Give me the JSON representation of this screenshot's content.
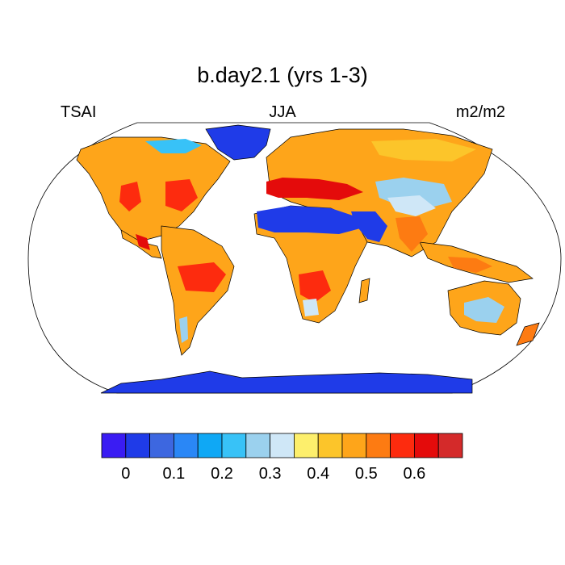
{
  "title": "b.day2.1 (yrs 1-3)",
  "subtitle": {
    "left": "TSAI",
    "center": "JJA",
    "right": "m2/m2"
  },
  "legend": {
    "colors": [
      "#3a1cf3",
      "#1f3be8",
      "#3d67e0",
      "#2a87f6",
      "#0fa8f5",
      "#38c2f7",
      "#9bd1ee",
      "#cfe7f7",
      "#fdef6c",
      "#fcc52a",
      "#fea51a",
      "#fd7b12",
      "#fd2b0e",
      "#e40b0b",
      "#d42a2a"
    ],
    "labels": [
      "0",
      "0.1",
      "0.2",
      "0.3",
      "0.4",
      "0.5",
      "0.6"
    ]
  },
  "chart_data": {
    "type": "heatmap",
    "title": "b.day2.1 (yrs 1-3)",
    "variable": "TSAI",
    "season": "JJA",
    "units": "m2/m2",
    "projection": "Robinson, global",
    "legend_placement": "bottom",
    "levels": [
      0,
      0.05,
      0.1,
      0.15,
      0.2,
      0.25,
      0.3,
      0.35,
      0.4,
      0.45,
      0.5,
      0.55,
      0.6,
      0.65
    ],
    "regions": [
      {
        "name": "Antarctica",
        "value_class": 0
      },
      {
        "name": "Greenland",
        "value_class": 0
      },
      {
        "name": "Sahara",
        "value_class": 0
      },
      {
        "name": "Arabia",
        "value_class": 1
      },
      {
        "name": "Central Asia deserts",
        "value_class": 7
      },
      {
        "name": "Tibetan Plateau",
        "value_class": 7
      },
      {
        "name": "Central Australia",
        "value_class": 6
      },
      {
        "name": "Siberia / Europe",
        "value_class": 10
      },
      {
        "name": "North America",
        "value_class": 10
      },
      {
        "name": "Amazon",
        "value_class": 10
      },
      {
        "name": "Central Africa",
        "value_class": 10
      },
      {
        "name": "Mediterranean",
        "value_class": 13
      },
      {
        "name": "Southeast Asia",
        "value_class": 10
      }
    ]
  }
}
